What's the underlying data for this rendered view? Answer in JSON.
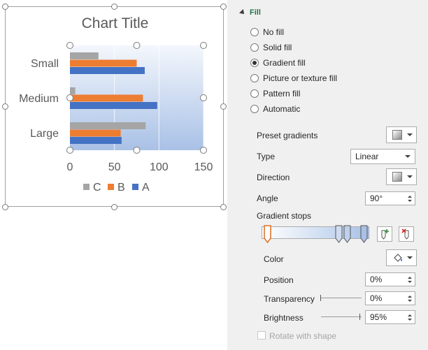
{
  "chart": {
    "title": "Chart Title",
    "colors": {
      "A": "#4472c4",
      "B": "#ed7d31",
      "C": "#a5a5a5"
    },
    "plot_fill": "gradient light-blue"
  },
  "chart_data": {
    "type": "bar",
    "orientation": "horizontal",
    "title": "Chart Title",
    "categories": [
      "Small",
      "Medium",
      "Large"
    ],
    "series": [
      {
        "name": "A",
        "values": [
          84,
          98,
          58
        ]
      },
      {
        "name": "B",
        "values": [
          75,
          82,
          57
        ]
      },
      {
        "name": "C",
        "values": [
          32,
          6,
          85
        ]
      }
    ],
    "xlim": [
      0,
      150
    ],
    "xticks": [
      "0",
      "50",
      "100",
      "150"
    ],
    "legend": [
      "C",
      "B",
      "A"
    ],
    "legend_position": "bottom",
    "grid": true
  },
  "pane": {
    "section_title": "Fill",
    "fill_options": [
      {
        "label": "No fill",
        "selected": false
      },
      {
        "label": "Solid fill",
        "selected": false
      },
      {
        "label": "Gradient fill",
        "selected": true
      },
      {
        "label": "Picture or texture fill",
        "selected": false
      },
      {
        "label": "Pattern fill",
        "selected": false
      },
      {
        "label": "Automatic",
        "selected": false
      }
    ],
    "preset_gradients_label": "Preset gradients",
    "type_label": "Type",
    "type_value": "Linear",
    "direction_label": "Direction",
    "angle_label": "Angle",
    "angle_value": "90°",
    "gradient_stops_label": "Gradient stops",
    "color_label": "Color",
    "position_label": "Position",
    "position_value": "0%",
    "transparency_label": "Transparency",
    "transparency_value": "0%",
    "brightness_label": "Brightness",
    "brightness_value": "95%",
    "rotate_label": "Rotate with shape",
    "icons": {
      "add_stop": "add-gradient-stop-icon",
      "remove_stop": "remove-gradient-stop-icon",
      "color": "paint-bucket-icon"
    }
  }
}
